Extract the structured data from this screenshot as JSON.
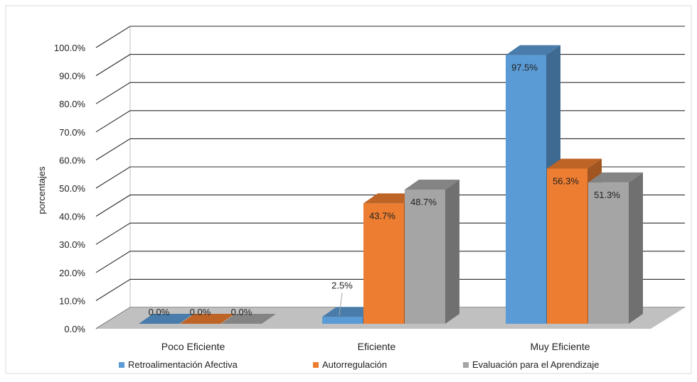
{
  "chart_data": {
    "type": "bar",
    "title": "",
    "xlabel": "",
    "ylabel": "porcentajes",
    "ylim": [
      0,
      100
    ],
    "yticks": [
      0,
      10,
      20,
      30,
      40,
      50,
      60,
      70,
      80,
      90,
      100
    ],
    "ytick_labels": [
      "0.0%",
      "10.0%",
      "20.0%",
      "30.0%",
      "40.0%",
      "50.0%",
      "60.0%",
      "70.0%",
      "80.0%",
      "90.0%",
      "100.0%"
    ],
    "categories": [
      "Poco Eficiente",
      "Eficiente",
      "Muy Eficiente"
    ],
    "series": [
      {
        "name": "Retroalimentación Afectiva",
        "values": [
          0.0,
          2.5,
          97.5
        ],
        "labels": [
          "0.0%",
          "2.5%",
          "97.5%"
        ],
        "color": "#5B9BD5"
      },
      {
        "name": "Autorregulación",
        "values": [
          0.0,
          43.7,
          56.3
        ],
        "labels": [
          "0.0%",
          "43.7%",
          "56.3%"
        ],
        "color": "#ED7D31"
      },
      {
        "name": "Evaluación para el Aprendizaje",
        "values": [
          0.0,
          48.7,
          51.3
        ],
        "labels": [
          "0.0%",
          "48.7%",
          "51.3%"
        ],
        "color": "#A5A5A5"
      }
    ],
    "grid": true,
    "style": "3d-clustered-column",
    "legend_position": "bottom"
  }
}
